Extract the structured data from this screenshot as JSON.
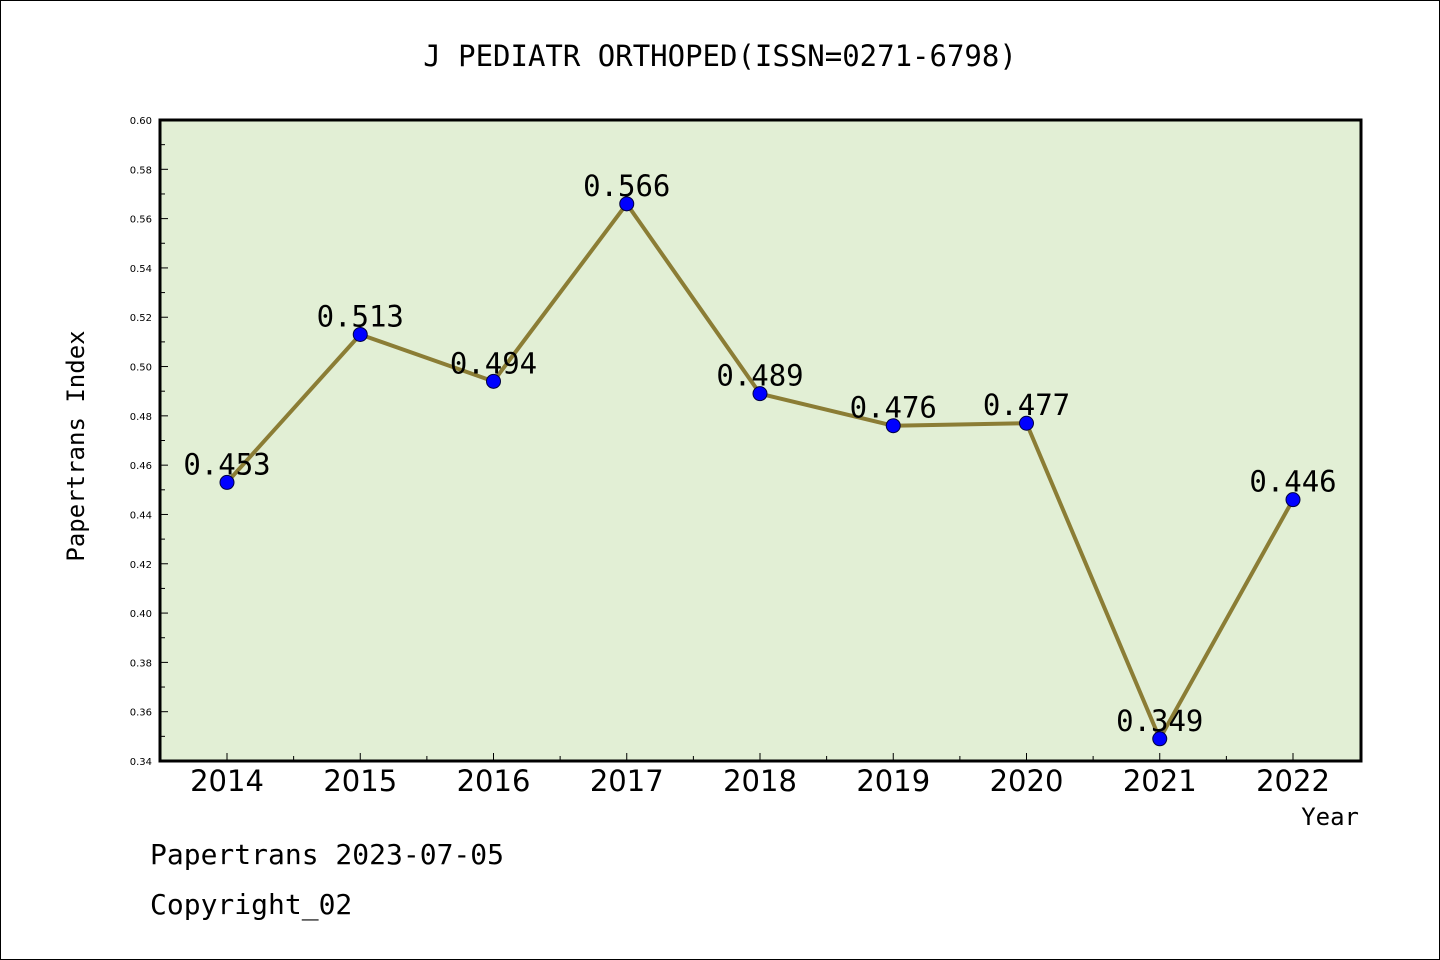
{
  "chart_data": {
    "type": "line",
    "title": "J PEDIATR ORTHOPED(ISSN=0271-6798)",
    "xlabel": "Year",
    "ylabel": "Papertrans Index",
    "categories": [
      "2014",
      "2015",
      "2016",
      "2017",
      "2018",
      "2019",
      "2020",
      "2021",
      "2022"
    ],
    "values": [
      0.453,
      0.513,
      0.494,
      0.566,
      0.489,
      0.476,
      0.477,
      0.349,
      0.446
    ],
    "data_labels": [
      "0.453",
      "0.513",
      "0.494",
      "0.566",
      "0.489",
      "0.476",
      "0.477",
      "0.349",
      "0.446"
    ],
    "ylim": [
      0.34,
      0.6
    ],
    "yticks": [
      "0.34",
      "0.36",
      "0.38",
      "0.40",
      "0.42",
      "0.44",
      "0.46",
      "0.48",
      "0.50",
      "0.52",
      "0.54",
      "0.56",
      "0.58",
      "0.60"
    ],
    "grid": false,
    "colors": {
      "plot_background": "#e2efd5",
      "line": "#8b7d35",
      "marker": "#0000ff"
    }
  },
  "footer": {
    "line1": "Papertrans 2023-07-05",
    "line2": "Copyright_02"
  }
}
